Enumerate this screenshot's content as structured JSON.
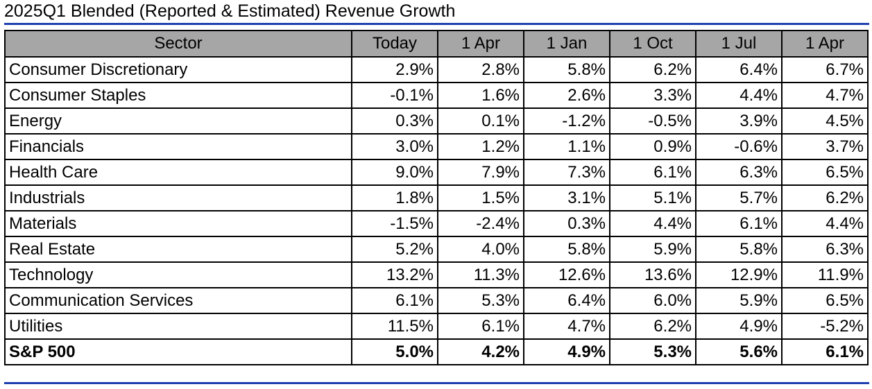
{
  "title": "2025Q1 Blended (Reported & Estimated) Revenue Growth",
  "chart_data": {
    "type": "table",
    "title": "2025Q1 Blended (Reported & Estimated) Revenue Growth",
    "header": [
      "Sector",
      "Today",
      "1 Apr",
      "1 Jan",
      "1 Oct",
      "1 Jul",
      "1 Apr"
    ],
    "rows": [
      {
        "sector": "Consumer Discretionary",
        "values": [
          "2.9%",
          "2.8%",
          "5.8%",
          "6.2%",
          "6.4%",
          "6.7%"
        ]
      },
      {
        "sector": "Consumer Staples",
        "values": [
          "-0.1%",
          "1.6%",
          "2.6%",
          "3.3%",
          "4.4%",
          "4.7%"
        ]
      },
      {
        "sector": "Energy",
        "values": [
          "0.3%",
          "0.1%",
          "-1.2%",
          "-0.5%",
          "3.9%",
          "4.5%"
        ]
      },
      {
        "sector": "Financials",
        "values": [
          "3.0%",
          "1.2%",
          "1.1%",
          "0.9%",
          "-0.6%",
          "3.7%"
        ]
      },
      {
        "sector": "Health Care",
        "values": [
          "9.0%",
          "7.9%",
          "7.3%",
          "6.1%",
          "6.3%",
          "6.5%"
        ]
      },
      {
        "sector": "Industrials",
        "values": [
          "1.8%",
          "1.5%",
          "3.1%",
          "5.1%",
          "5.7%",
          "6.2%"
        ]
      },
      {
        "sector": "Materials",
        "values": [
          "-1.5%",
          "-2.4%",
          "0.3%",
          "4.4%",
          "6.1%",
          "4.4%"
        ]
      },
      {
        "sector": "Real Estate",
        "values": [
          "5.2%",
          "4.0%",
          "5.8%",
          "5.9%",
          "5.8%",
          "6.3%"
        ]
      },
      {
        "sector": "Technology",
        "values": [
          "13.2%",
          "11.3%",
          "12.6%",
          "13.6%",
          "12.9%",
          "11.9%"
        ]
      },
      {
        "sector": "Communication Services",
        "values": [
          "6.1%",
          "5.3%",
          "6.4%",
          "6.0%",
          "5.9%",
          "6.5%"
        ]
      },
      {
        "sector": "Utilities",
        "values": [
          "11.5%",
          "6.1%",
          "4.7%",
          "6.2%",
          "4.9%",
          "-5.2%"
        ]
      }
    ],
    "total": {
      "sector": "S&P 500",
      "values": [
        "5.0%",
        "4.2%",
        "4.9%",
        "5.3%",
        "5.6%",
        "6.1%"
      ]
    }
  },
  "colors": {
    "header_bg": "#a6a6a6",
    "rule": "#1f3fb0",
    "grid": "#000000"
  }
}
